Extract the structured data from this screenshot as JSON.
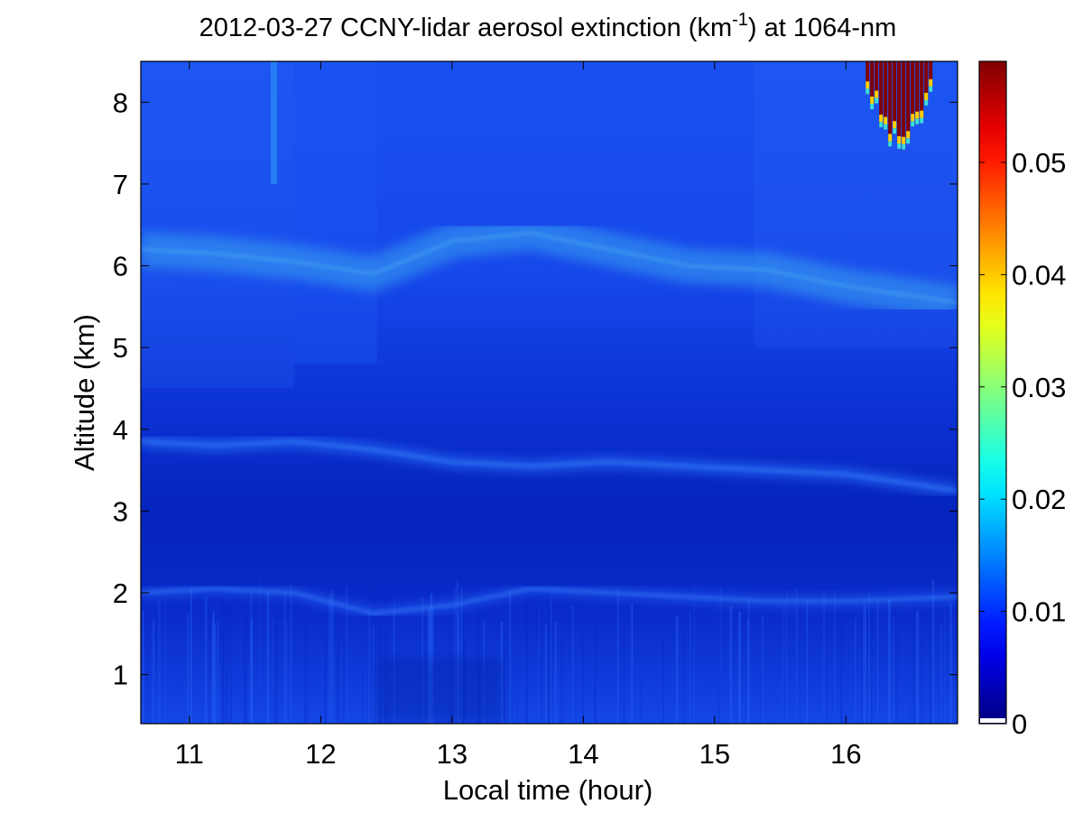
{
  "chart_data": {
    "type": "heatmap",
    "title": {
      "prefix": "2012-03-27 CCNY-lidar aerosol extinction (km",
      "superscript": "-1",
      "suffix": ") at 1064-nm"
    },
    "xlabel": "Local time (hour)",
    "ylabel": "Altitude (km)",
    "xlim": [
      10.63,
      16.85
    ],
    "ylim": [
      0.4,
      8.5
    ],
    "x_ticks": [
      11,
      12,
      13,
      14,
      15,
      16
    ],
    "y_ticks": [
      1,
      2,
      3,
      4,
      5,
      6,
      7,
      8
    ],
    "colorbar": {
      "colormap": "jet",
      "range": [
        0,
        0.059
      ],
      "ticks": [
        0,
        0.01,
        0.02,
        0.03,
        0.04,
        0.05
      ],
      "tick_labels": [
        "0",
        "0.01",
        "0.02",
        "0.03",
        "0.04",
        "0.05"
      ]
    },
    "layers": [
      {
        "feature": "aerosol layer top",
        "x": [
          10.63,
          11.2,
          11.8,
          12.4,
          13.0,
          13.6,
          14.2,
          14.8,
          15.4,
          16.0,
          16.85
        ],
        "altitude": [
          3.85,
          3.8,
          3.85,
          3.75,
          3.6,
          3.55,
          3.6,
          3.55,
          3.5,
          3.45,
          3.25
        ]
      },
      {
        "feature": "lower aerosol layer",
        "x": [
          10.63,
          11.2,
          11.8,
          12.4,
          13.0,
          13.6,
          14.2,
          14.8,
          15.4,
          16.0,
          16.85
        ],
        "altitude": [
          2.0,
          2.05,
          2.0,
          1.75,
          1.85,
          2.05,
          2.0,
          1.95,
          1.9,
          1.9,
          1.95
        ]
      },
      {
        "feature": "upper aerosol layer",
        "x": [
          10.63,
          11.2,
          11.8,
          12.4,
          13.0,
          13.6,
          14.2,
          14.8,
          15.4,
          16.0,
          16.85
        ],
        "altitude": [
          6.2,
          6.15,
          6.05,
          5.9,
          6.3,
          6.4,
          6.2,
          6.0,
          5.95,
          5.75,
          5.55
        ]
      },
      {
        "feature": "high cloud",
        "x_range": [
          16.15,
          16.65
        ],
        "altitude_range": [
          7.3,
          8.5
        ],
        "extinction": 0.059
      }
    ]
  }
}
